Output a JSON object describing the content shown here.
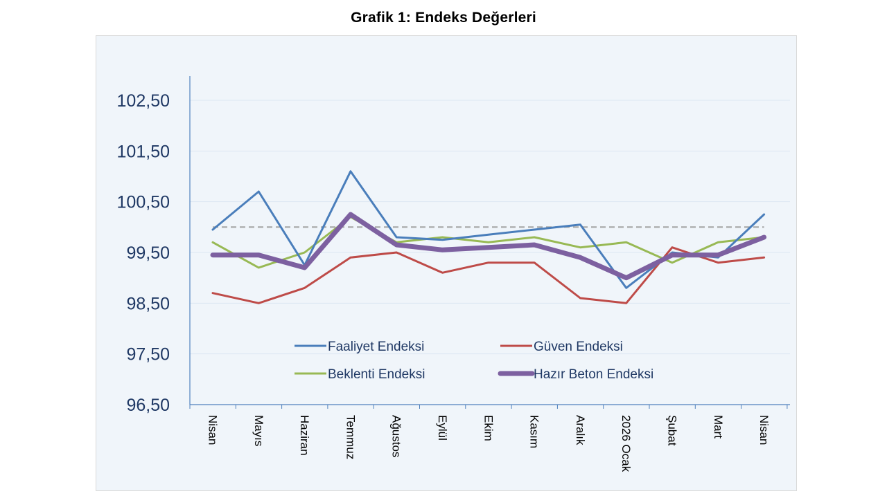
{
  "chart_data": {
    "type": "line",
    "title": "Grafik 1: Endeks Değerleri",
    "xlabel": "",
    "ylabel": "",
    "categories": [
      "Nisan",
      "Mayıs",
      "Haziran",
      "Temmuz",
      "Ağustos",
      "Eylül",
      "Ekim",
      "Kasım",
      "Aralık",
      "2026 Ocak",
      "Şubat",
      "Mart",
      "Nisan"
    ],
    "y_ticks": [
      "102,50",
      "101,50",
      "100,50",
      "99,50",
      "98,50",
      "97,50",
      "96,50"
    ],
    "ylim": [
      96.5,
      102.5
    ],
    "reference_line": {
      "value": 100,
      "style": "dashed",
      "color": "#a6a6a6"
    },
    "grid": true,
    "legend_position": "bottom-center inside plot",
    "series": [
      {
        "name": "Faaliyet Endeksi",
        "color": "#4a7ebb",
        "values": [
          99.95,
          100.7,
          99.25,
          101.1,
          99.8,
          99.75,
          99.85,
          99.95,
          100.05,
          98.8,
          99.5,
          99.4,
          100.25
        ]
      },
      {
        "name": "Güven Endeksi",
        "color": "#be4b48",
        "values": [
          98.7,
          98.5,
          98.8,
          99.4,
          99.5,
          99.1,
          99.3,
          99.3,
          98.6,
          98.5,
          99.6,
          99.3,
          99.4
        ]
      },
      {
        "name": "Beklenti Endeksi",
        "color": "#98b954",
        "values": [
          99.7,
          99.2,
          99.5,
          100.2,
          99.7,
          99.8,
          99.7,
          99.8,
          99.6,
          99.7,
          99.3,
          99.7,
          99.8
        ]
      },
      {
        "name": "Hazır Beton Endeksi",
        "color": "#7d60a0",
        "values": [
          99.45,
          99.45,
          99.2,
          100.25,
          99.65,
          99.55,
          99.6,
          99.65,
          99.4,
          99.0,
          99.45,
          99.45,
          99.8
        ]
      }
    ]
  }
}
